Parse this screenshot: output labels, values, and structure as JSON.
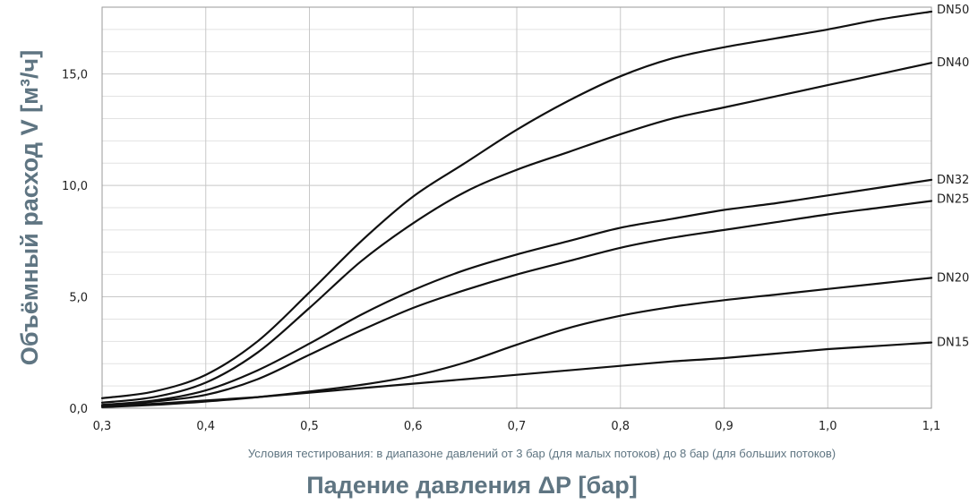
{
  "chart_data": {
    "type": "line",
    "xlabel": "Падение давления ΔР [бар]",
    "ylabel": "Объёмный расход V [м³/ч]",
    "note": "Условия тестирования: в диапазоне давлений от 3 бар (для малых потоков) до 8 бар (для больших потоков)",
    "xlim": [
      0.3,
      1.1
    ],
    "ylim": [
      0,
      18
    ],
    "x_ticks": [
      0.3,
      0.4,
      0.5,
      0.6,
      0.7,
      0.8,
      0.9,
      1.0,
      1.1
    ],
    "x_tick_labels": [
      "0,3",
      "0,4",
      "0,5",
      "0,6",
      "0,7",
      "0,8",
      "0,9",
      "1,0",
      "1,1"
    ],
    "y_ticks": [
      0,
      5,
      10,
      15
    ],
    "y_tick_labels": [
      "0,0",
      "5,0",
      "10,0",
      "15,0"
    ],
    "grid": true,
    "legend": "labels at right end of each line",
    "series": [
      {
        "name": "DN50",
        "x": [
          0.3,
          0.35,
          0.4,
          0.45,
          0.5,
          0.55,
          0.6,
          0.65,
          0.7,
          0.75,
          0.8,
          0.85,
          0.9,
          0.95,
          1.0,
          1.05,
          1.1
        ],
        "values": [
          0.45,
          0.75,
          1.5,
          3.0,
          5.2,
          7.5,
          9.5,
          11.0,
          12.5,
          13.8,
          14.9,
          15.7,
          16.2,
          16.6,
          17.0,
          17.45,
          17.8
        ]
      },
      {
        "name": "DN40",
        "x": [
          0.3,
          0.35,
          0.4,
          0.45,
          0.5,
          0.55,
          0.6,
          0.65,
          0.7,
          0.75,
          0.8,
          0.85,
          0.9,
          0.95,
          1.0,
          1.05,
          1.1
        ],
        "values": [
          0.25,
          0.5,
          1.15,
          2.5,
          4.5,
          6.6,
          8.3,
          9.7,
          10.7,
          11.5,
          12.3,
          13.0,
          13.5,
          14.0,
          14.5,
          15.0,
          15.5
        ]
      },
      {
        "name": "DN32",
        "x": [
          0.3,
          0.35,
          0.4,
          0.45,
          0.5,
          0.55,
          0.6,
          0.65,
          0.7,
          0.75,
          0.8,
          0.85,
          0.9,
          0.95,
          1.0,
          1.05,
          1.1
        ],
        "values": [
          0.15,
          0.35,
          0.8,
          1.7,
          2.9,
          4.2,
          5.3,
          6.2,
          6.9,
          7.5,
          8.1,
          8.5,
          8.9,
          9.2,
          9.55,
          9.9,
          10.25
        ]
      },
      {
        "name": "DN25",
        "x": [
          0.3,
          0.35,
          0.4,
          0.45,
          0.5,
          0.55,
          0.6,
          0.65,
          0.7,
          0.75,
          0.8,
          0.85,
          0.9,
          0.95,
          1.0,
          1.05,
          1.1
        ],
        "values": [
          0.12,
          0.3,
          0.6,
          1.3,
          2.4,
          3.5,
          4.5,
          5.3,
          6.0,
          6.6,
          7.2,
          7.65,
          8.0,
          8.35,
          8.7,
          9.0,
          9.3
        ]
      },
      {
        "name": "DN20",
        "x": [
          0.3,
          0.35,
          0.4,
          0.45,
          0.5,
          0.55,
          0.6,
          0.65,
          0.7,
          0.75,
          0.8,
          0.85,
          0.9,
          0.95,
          1.0,
          1.05,
          1.1
        ],
        "values": [
          0.05,
          0.15,
          0.3,
          0.5,
          0.75,
          1.05,
          1.45,
          2.05,
          2.85,
          3.6,
          4.15,
          4.55,
          4.85,
          5.1,
          5.35,
          5.6,
          5.85
        ]
      },
      {
        "name": "DN15",
        "x": [
          0.3,
          0.35,
          0.4,
          0.45,
          0.5,
          0.55,
          0.6,
          0.65,
          0.7,
          0.75,
          0.8,
          0.85,
          0.9,
          0.95,
          1.0,
          1.05,
          1.1
        ],
        "values": [
          0.1,
          0.2,
          0.35,
          0.5,
          0.7,
          0.9,
          1.1,
          1.3,
          1.5,
          1.7,
          1.9,
          2.1,
          2.25,
          2.45,
          2.65,
          2.8,
          2.95
        ]
      }
    ]
  }
}
